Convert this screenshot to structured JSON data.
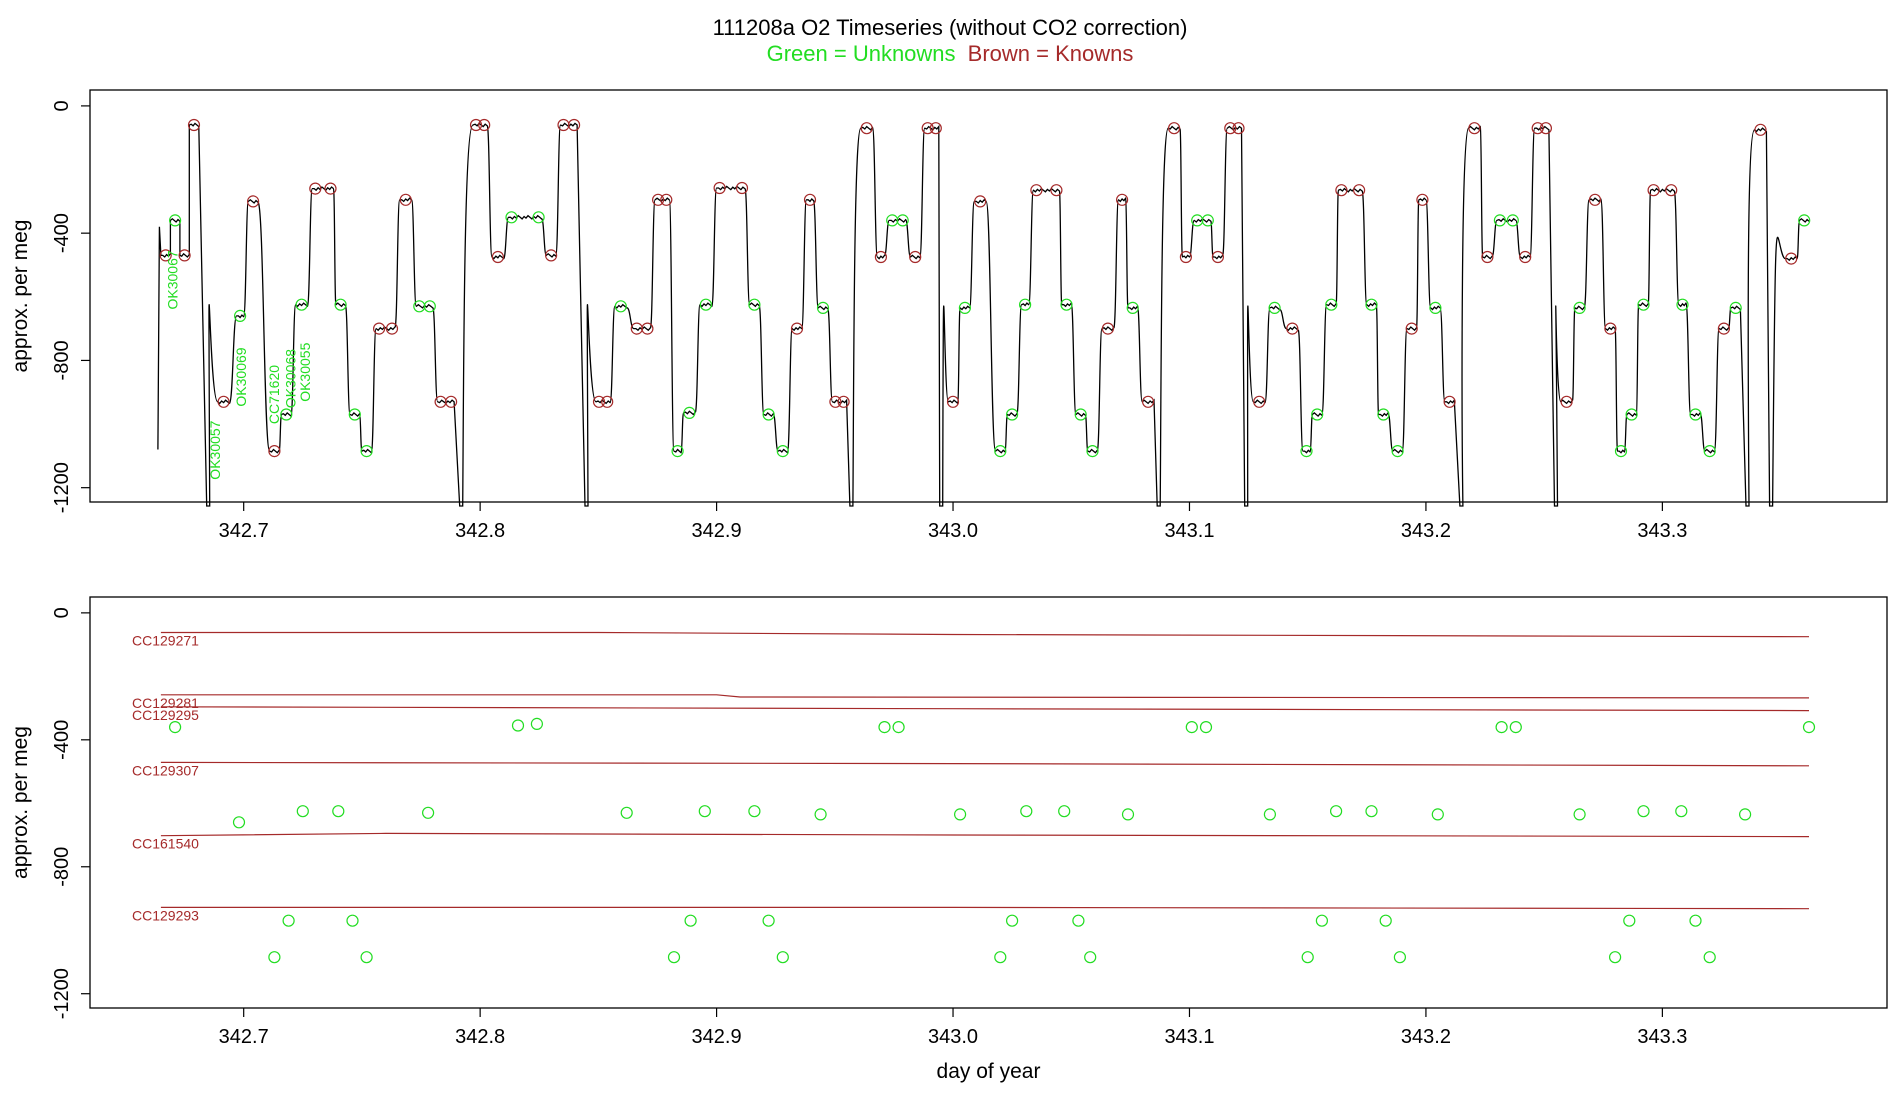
{
  "header": {
    "title": "111208a   O2 Timeseries (without CO2 correction)",
    "legend_green": "Green = Unknowns",
    "legend_brown": "Brown = Knowns",
    "colors": {
      "unknowns": "#22dd22",
      "knowns": "#a52a2a",
      "trace": "#000000"
    }
  },
  "chart_data": [
    {
      "type": "line",
      "title": "",
      "xlabel": "",
      "ylabel": "approx. per meg",
      "xlim": [
        342.635,
        343.395
      ],
      "ylim": [
        -1245,
        50
      ],
      "xticks": [
        342.7,
        342.8,
        342.9,
        343.0,
        343.1,
        343.2,
        343.3
      ],
      "xtick_labels": [
        "342.7",
        "342.8",
        "342.9",
        "343.0",
        "343.1",
        "343.2",
        "343.3"
      ],
      "yticks": [
        0,
        -400,
        -800,
        -1200
      ],
      "ytick_labels": [
        "0",
        "-400",
        "-800",
        "-1200"
      ],
      "grid": false,
      "annotations": [
        {
          "text": "OK30067",
          "x": 342.672,
          "y": -640,
          "color": "#22dd22"
        },
        {
          "text": "OK30057",
          "x": 342.69,
          "y": -1175,
          "color": "#22dd22"
        },
        {
          "text": "OK30069",
          "x": 342.701,
          "y": -945,
          "color": "#22dd22"
        },
        {
          "text": "CC71620",
          "x": 342.715,
          "y": -1000,
          "color": "#22dd22"
        },
        {
          "text": "OK30068",
          "x": 342.722,
          "y": -950,
          "color": "#22dd22"
        },
        {
          "text": "OK30055",
          "x": 342.728,
          "y": -930,
          "color": "#22dd22"
        }
      ],
      "segments": [
        {
          "x0": 342.665,
          "x1": 342.669,
          "y": -470,
          "c": "known"
        },
        {
          "x0": 342.669,
          "x1": 342.673,
          "y": -360,
          "c": "unknown"
        },
        {
          "x0": 342.673,
          "x1": 342.677,
          "y": -470,
          "c": "known"
        },
        {
          "x0": 342.677,
          "x1": 342.681,
          "y": -60,
          "c": "known"
        },
        {
          "x0": 342.689,
          "x1": 342.694,
          "y": -930,
          "c": "known"
        },
        {
          "x0": 342.697,
          "x1": 342.7,
          "y": -660,
          "c": "unknown"
        },
        {
          "x0": 342.702,
          "x1": 342.706,
          "y": -300,
          "c": "known"
        },
        {
          "x0": 342.711,
          "x1": 342.715,
          "y": -1085,
          "c": "known"
        },
        {
          "x0": 342.716,
          "x1": 342.72,
          "y": -970,
          "c": "unknown"
        },
        {
          "x0": 342.722,
          "x1": 342.727,
          "y": -625,
          "c": "unknown"
        },
        {
          "x0": 342.729,
          "x1": 342.738,
          "y": -260,
          "c": "known"
        },
        {
          "x0": 342.739,
          "x1": 342.743,
          "y": -625,
          "c": "unknown"
        },
        {
          "x0": 342.745,
          "x1": 342.749,
          "y": -970,
          "c": "unknown"
        },
        {
          "x0": 342.75,
          "x1": 342.754,
          "y": -1085,
          "c": "unknown"
        },
        {
          "x0": 342.756,
          "x1": 342.764,
          "y": -700,
          "c": "known"
        },
        {
          "x0": 342.766,
          "x1": 342.771,
          "y": -295,
          "c": "known"
        },
        {
          "x0": 342.773,
          "x1": 342.78,
          "y": -630,
          "c": "unknown"
        },
        {
          "x0": 342.782,
          "x1": 342.789,
          "y": -930,
          "c": "known"
        },
        {
          "x0": 342.797,
          "x1": 342.803,
          "y": -60,
          "c": "known"
        },
        {
          "x0": 342.805,
          "x1": 342.81,
          "y": -475,
          "c": "known"
        },
        {
          "x0": 342.812,
          "x1": 342.826,
          "y": -350,
          "c": "unknown"
        },
        {
          "x0": 342.828,
          "x1": 342.832,
          "y": -470,
          "c": "known"
        },
        {
          "x0": 342.834,
          "x1": 342.841,
          "y": -60,
          "c": "known"
        },
        {
          "x0": 342.849,
          "x1": 342.855,
          "y": -930,
          "c": "known"
        },
        {
          "x0": 342.857,
          "x1": 342.862,
          "y": -630,
          "c": "unknown"
        },
        {
          "x0": 342.865,
          "x1": 342.872,
          "y": -700,
          "c": "known"
        },
        {
          "x0": 342.874,
          "x1": 342.88,
          "y": -295,
          "c": "known"
        },
        {
          "x0": 342.882,
          "x1": 342.885,
          "y": -1085,
          "c": "unknown"
        },
        {
          "x0": 342.886,
          "x1": 342.891,
          "y": -965,
          "c": "unknown"
        },
        {
          "x0": 342.893,
          "x1": 342.898,
          "y": -625,
          "c": "unknown"
        },
        {
          "x0": 342.9,
          "x1": 342.912,
          "y": -258,
          "c": "known"
        },
        {
          "x0": 342.914,
          "x1": 342.918,
          "y": -625,
          "c": "unknown"
        },
        {
          "x0": 342.92,
          "x1": 342.924,
          "y": -970,
          "c": "unknown"
        },
        {
          "x0": 342.926,
          "x1": 342.93,
          "y": -1085,
          "c": "unknown"
        },
        {
          "x0": 342.932,
          "x1": 342.936,
          "y": -700,
          "c": "known"
        },
        {
          "x0": 342.938,
          "x1": 342.941,
          "y": -295,
          "c": "known"
        },
        {
          "x0": 342.943,
          "x1": 342.947,
          "y": -635,
          "c": "unknown"
        },
        {
          "x0": 342.949,
          "x1": 342.955,
          "y": -930,
          "c": "known"
        },
        {
          "x0": 342.961,
          "x1": 342.966,
          "y": -70,
          "c": "known"
        },
        {
          "x0": 342.968,
          "x1": 342.971,
          "y": -475,
          "c": "known"
        },
        {
          "x0": 342.973,
          "x1": 342.98,
          "y": -360,
          "c": "unknown"
        },
        {
          "x0": 342.982,
          "x1": 342.986,
          "y": -475,
          "c": "known"
        },
        {
          "x0": 342.988,
          "x1": 342.994,
          "y": -70,
          "c": "known"
        },
        {
          "x0": 342.998,
          "x1": 343.002,
          "y": -930,
          "c": "known"
        },
        {
          "x0": 343.003,
          "x1": 343.007,
          "y": -635,
          "c": "unknown"
        },
        {
          "x0": 343.009,
          "x1": 343.014,
          "y": -300,
          "c": "known"
        },
        {
          "x0": 343.018,
          "x1": 343.022,
          "y": -1085,
          "c": "unknown"
        },
        {
          "x0": 343.023,
          "x1": 343.027,
          "y": -970,
          "c": "unknown"
        },
        {
          "x0": 343.029,
          "x1": 343.032,
          "y": -625,
          "c": "unknown"
        },
        {
          "x0": 343.034,
          "x1": 343.045,
          "y": -265,
          "c": "known"
        },
        {
          "x0": 343.046,
          "x1": 343.05,
          "y": -625,
          "c": "unknown"
        },
        {
          "x0": 343.052,
          "x1": 343.056,
          "y": -970,
          "c": "unknown"
        },
        {
          "x0": 343.057,
          "x1": 343.061,
          "y": -1085,
          "c": "unknown"
        },
        {
          "x0": 343.063,
          "x1": 343.068,
          "y": -700,
          "c": "known"
        },
        {
          "x0": 343.07,
          "x1": 343.073,
          "y": -295,
          "c": "known"
        },
        {
          "x0": 343.074,
          "x1": 343.078,
          "y": -635,
          "c": "unknown"
        },
        {
          "x0": 343.08,
          "x1": 343.085,
          "y": -930,
          "c": "known"
        },
        {
          "x0": 343.091,
          "x1": 343.096,
          "y": -70,
          "c": "known"
        },
        {
          "x0": 343.097,
          "x1": 343.1,
          "y": -475,
          "c": "known"
        },
        {
          "x0": 343.102,
          "x1": 343.109,
          "y": -360,
          "c": "unknown"
        },
        {
          "x0": 343.11,
          "x1": 343.114,
          "y": -475,
          "c": "known"
        },
        {
          "x0": 343.116,
          "x1": 343.122,
          "y": -70,
          "c": "known"
        },
        {
          "x0": 343.127,
          "x1": 343.132,
          "y": -930,
          "c": "known"
        },
        {
          "x0": 343.134,
          "x1": 343.138,
          "y": -635,
          "c": "unknown"
        },
        {
          "x0": 343.141,
          "x1": 343.146,
          "y": -700,
          "c": "known"
        },
        {
          "x0": 343.148,
          "x1": 343.151,
          "y": -1085,
          "c": "unknown"
        },
        {
          "x0": 343.152,
          "x1": 343.156,
          "y": -970,
          "c": "unknown"
        },
        {
          "x0": 343.158,
          "x1": 343.162,
          "y": -625,
          "c": "unknown"
        },
        {
          "x0": 343.163,
          "x1": 343.173,
          "y": -265,
          "c": "known"
        },
        {
          "x0": 343.175,
          "x1": 343.179,
          "y": -625,
          "c": "unknown"
        },
        {
          "x0": 343.18,
          "x1": 343.184,
          "y": -970,
          "c": "unknown"
        },
        {
          "x0": 343.186,
          "x1": 343.19,
          "y": -1085,
          "c": "unknown"
        },
        {
          "x0": 343.192,
          "x1": 343.196,
          "y": -700,
          "c": "known"
        },
        {
          "x0": 343.197,
          "x1": 343.2,
          "y": -295,
          "c": "known"
        },
        {
          "x0": 343.202,
          "x1": 343.206,
          "y": -635,
          "c": "unknown"
        },
        {
          "x0": 343.208,
          "x1": 343.212,
          "y": -930,
          "c": "known"
        },
        {
          "x0": 343.218,
          "x1": 343.223,
          "y": -70,
          "c": "known"
        },
        {
          "x0": 343.224,
          "x1": 343.228,
          "y": -475,
          "c": "known"
        },
        {
          "x0": 343.23,
          "x1": 343.238,
          "y": -360,
          "c": "unknown"
        },
        {
          "x0": 343.24,
          "x1": 343.244,
          "y": -475,
          "c": "known"
        },
        {
          "x0": 343.246,
          "x1": 343.252,
          "y": -70,
          "c": "known"
        },
        {
          "x0": 343.257,
          "x1": 343.262,
          "y": -930,
          "c": "known"
        },
        {
          "x0": 343.263,
          "x1": 343.267,
          "y": -635,
          "c": "unknown"
        },
        {
          "x0": 343.269,
          "x1": 343.274,
          "y": -295,
          "c": "known"
        },
        {
          "x0": 343.276,
          "x1": 343.28,
          "y": -700,
          "c": "known"
        },
        {
          "x0": 343.281,
          "x1": 343.284,
          "y": -1085,
          "c": "unknown"
        },
        {
          "x0": 343.285,
          "x1": 343.289,
          "y": -970,
          "c": "unknown"
        },
        {
          "x0": 343.29,
          "x1": 343.294,
          "y": -625,
          "c": "unknown"
        },
        {
          "x0": 343.295,
          "x1": 343.305,
          "y": -265,
          "c": "known"
        },
        {
          "x0": 343.307,
          "x1": 343.31,
          "y": -625,
          "c": "unknown"
        },
        {
          "x0": 343.312,
          "x1": 343.316,
          "y": -970,
          "c": "unknown"
        },
        {
          "x0": 343.318,
          "x1": 343.322,
          "y": -1085,
          "c": "unknown"
        },
        {
          "x0": 343.324,
          "x1": 343.328,
          "y": -700,
          "c": "known"
        },
        {
          "x0": 343.329,
          "x1": 343.333,
          "y": -635,
          "c": "unknown"
        },
        {
          "x0": 343.339,
          "x1": 343.344,
          "y": -75,
          "c": "known"
        },
        {
          "x0": 343.352,
          "x1": 343.357,
          "y": -480,
          "c": "known"
        },
        {
          "x0": 343.358,
          "x1": 343.362,
          "y": -360,
          "c": "unknown"
        }
      ],
      "dips": [
        342.685,
        342.792,
        342.845,
        342.957,
        342.995,
        343.087,
        343.124,
        343.215,
        343.255,
        343.336,
        343.346
      ]
    },
    {
      "type": "scatter",
      "title": "",
      "xlabel": "day of year",
      "ylabel": "approx. per meg",
      "xlim": [
        342.635,
        343.395
      ],
      "ylim": [
        -1245,
        50
      ],
      "xticks": [
        342.7,
        342.8,
        342.9,
        343.0,
        343.1,
        343.2,
        343.3
      ],
      "xtick_labels": [
        "342.7",
        "342.8",
        "342.9",
        "343.0",
        "343.1",
        "343.2",
        "343.3"
      ],
      "yticks": [
        0,
        -400,
        -800,
        -1200
      ],
      "ytick_labels": [
        "0",
        "-400",
        "-800",
        "-1200"
      ],
      "grid": false,
      "reference_lines": [
        {
          "name": "CC129271",
          "x": [
            342.665,
            342.85,
            343.0,
            343.362
          ],
          "y": [
            -62,
            -62,
            -68,
            -75
          ]
        },
        {
          "name": "CC129281",
          "x": [
            342.665,
            342.9,
            342.91,
            343.362
          ],
          "y": [
            -258,
            -258,
            -265,
            -268
          ]
        },
        {
          "name": "CC129295",
          "x": [
            342.665,
            343.0,
            343.362
          ],
          "y": [
            -296,
            -302,
            -308
          ]
        },
        {
          "name": "CC129307",
          "x": [
            342.665,
            343.0,
            343.362
          ],
          "y": [
            -471,
            -475,
            -482
          ]
        },
        {
          "name": "CC161540",
          "x": [
            342.665,
            342.76,
            343.0,
            343.362
          ],
          "y": [
            -702,
            -695,
            -700,
            -705
          ]
        },
        {
          "name": "CC129293",
          "x": [
            342.665,
            343.0,
            343.362
          ],
          "y": [
            -928,
            -928,
            -932
          ]
        }
      ],
      "unknowns": {
        "x": [
          342.671,
          342.698,
          342.713,
          342.719,
          342.725,
          342.74,
          342.746,
          342.752,
          342.778,
          342.816,
          342.824,
          342.862,
          342.882,
          342.889,
          342.895,
          342.916,
          342.922,
          342.928,
          342.944,
          342.971,
          342.977,
          343.003,
          343.02,
          343.025,
          343.031,
          343.047,
          343.053,
          343.058,
          343.074,
          343.101,
          343.107,
          343.134,
          343.15,
          343.156,
          343.162,
          343.177,
          343.183,
          343.189,
          343.205,
          343.232,
          343.238,
          343.265,
          343.28,
          343.286,
          343.292,
          343.308,
          343.314,
          343.32,
          343.335,
          343.362
        ],
        "y": [
          -360,
          -660,
          -1085,
          -970,
          -625,
          -625,
          -970,
          -1085,
          -630,
          -355,
          -350,
          -630,
          -1085,
          -970,
          -625,
          -625,
          -970,
          -1085,
          -635,
          -360,
          -360,
          -635,
          -1085,
          -970,
          -625,
          -625,
          -970,
          -1085,
          -635,
          -360,
          -360,
          -635,
          -1085,
          -970,
          -625,
          -625,
          -970,
          -1085,
          -635,
          -360,
          -360,
          -635,
          -1085,
          -970,
          -625,
          -625,
          -970,
          -1085,
          -635,
          -360
        ]
      }
    }
  ]
}
